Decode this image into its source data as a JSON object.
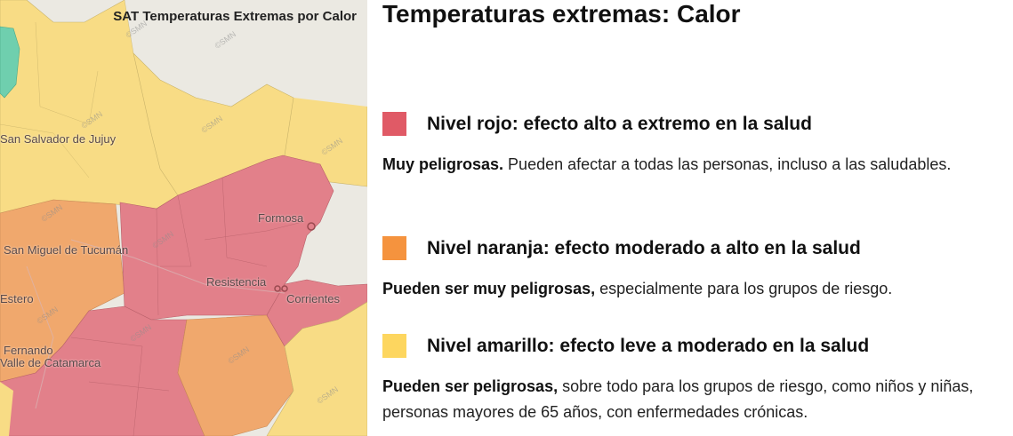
{
  "map": {
    "title": "SAT Temperaturas Extremas por Calor",
    "watermark": "©SMN",
    "colors": {
      "red": "#e2808a",
      "orange": "#f0a86d",
      "yellow": "#f8dc85",
      "green": "#6fcfae",
      "base": "#ebe9e2"
    },
    "cities": [
      "San Salvador de Jujuy",
      "Formosa",
      "San Miguel de Tucumán",
      "Resistencia",
      "Corrientes",
      "Estero",
      "Fernando",
      "Valle de Catamarca"
    ]
  },
  "panel": {
    "title": "Temperaturas extremas: Calor",
    "levels": [
      {
        "color": "#e05a66",
        "title": "Nivel rojo: efecto alto a extremo en la salud",
        "desc_bold": "Muy peligrosas.",
        "desc_rest": " Pueden afectar a todas las personas, incluso a las saludables."
      },
      {
        "color": "#f5933e",
        "title": "Nivel naranja: efecto moderado a alto en la salud",
        "desc_bold": "Pueden ser muy peligrosas,",
        "desc_rest": " especialmente para los grupos de riesgo."
      },
      {
        "color": "#fdd65f",
        "title": "Nivel amarillo: efecto leve a moderado en la salud",
        "desc_bold": "Pueden ser peligrosas,",
        "desc_rest": " sobre todo para los grupos de riesgo, como niños y niñas, personas mayores de 65 años, con enfermedades crónicas."
      }
    ]
  }
}
